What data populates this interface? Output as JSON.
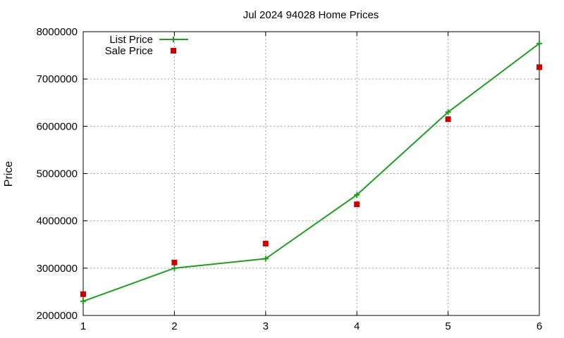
{
  "chart_data": {
    "type": "line",
    "title": "Jul 2024 94028 Home Prices",
    "xlabel": "",
    "ylabel": "Price",
    "x": [
      1,
      2,
      3,
      4,
      5,
      6
    ],
    "xlim": [
      1,
      6
    ],
    "ylim": [
      2000000,
      8000000
    ],
    "x_ticks": [
      "1",
      "2",
      "3",
      "4",
      "5",
      "6"
    ],
    "y_ticks": [
      "2000000",
      "3000000",
      "4000000",
      "5000000",
      "6000000",
      "7000000",
      "8000000"
    ],
    "grid": true,
    "legend_position": "top-left",
    "series": [
      {
        "name": "List Price",
        "style": "line+points",
        "marker": "plus",
        "color": "#1ca01c",
        "values": [
          2300000,
          3000000,
          3200000,
          4550000,
          6300000,
          7750000
        ]
      },
      {
        "name": "Sale Price",
        "style": "points",
        "marker": "square",
        "color": "#cc0000",
        "values": [
          2450000,
          3120000,
          3520000,
          4350000,
          6150000,
          7250000
        ]
      }
    ]
  }
}
